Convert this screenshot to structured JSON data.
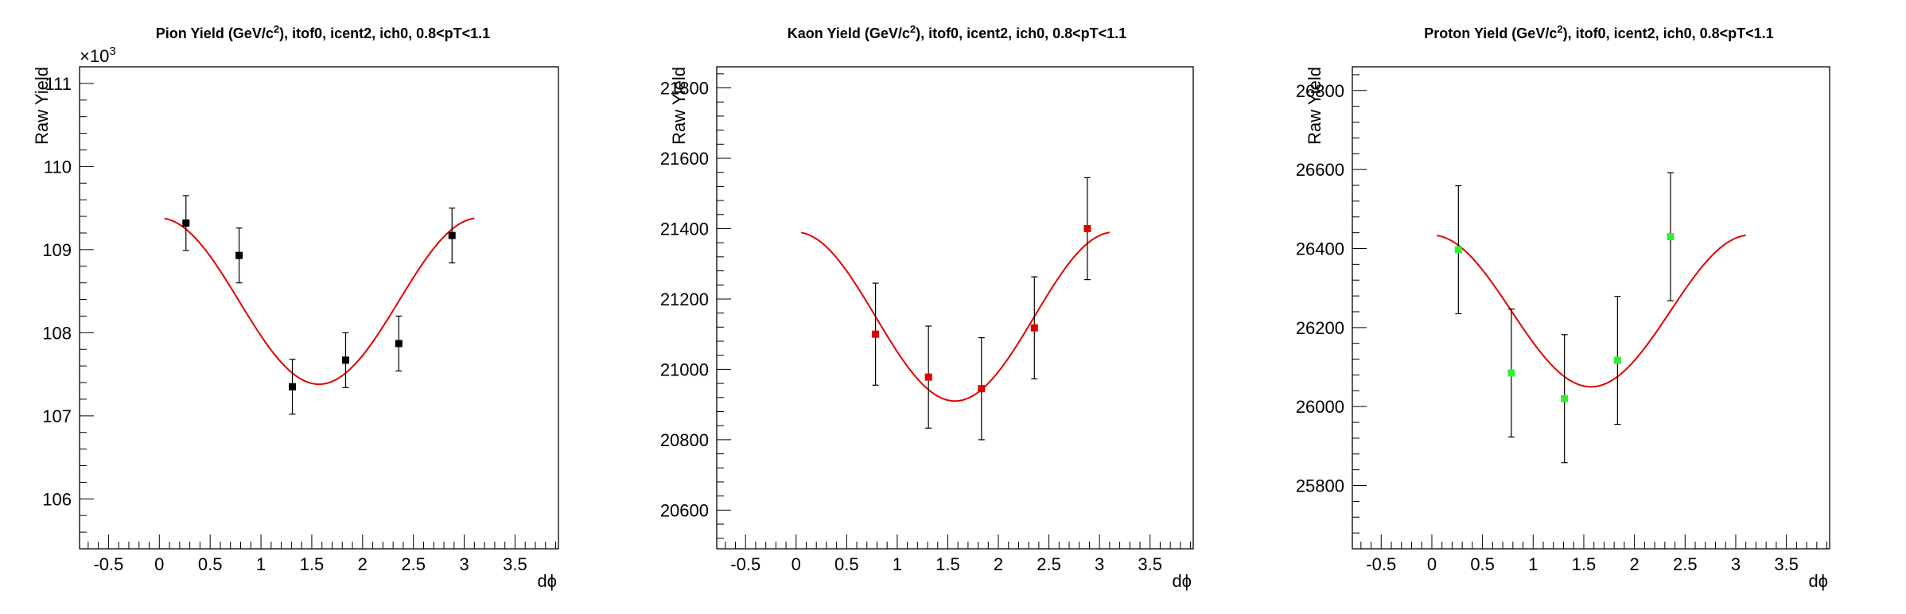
{
  "chart_data": [
    {
      "type": "scatter",
      "title": "Pion Yield (GeV/c), itof0, icent2, ich0, 0.8<pT<1.1",
      "title_sup": "2",
      "xlabel": "dϕ",
      "ylabel": "Raw Yield",
      "exponent_label": "×10",
      "exponent_sup": "3",
      "xlim": [
        -0.785,
        3.927
      ],
      "ylim": [
        105.4,
        111.2
      ],
      "xticks": [
        -0.5,
        0,
        0.5,
        1,
        1.5,
        2,
        2.5,
        3,
        3.5
      ],
      "xtick_labels": [
        "-0.5",
        "0",
        "0.5",
        "1",
        "1.5",
        "2",
        "2.5",
        "3",
        "3.5"
      ],
      "yticks": [
        106,
        107,
        108,
        109,
        110,
        111
      ],
      "ytick_labels": [
        "106",
        "107",
        "108",
        "109",
        "110",
        "111"
      ],
      "marker_color": "#000000",
      "fit_color": "#e00000",
      "fit": {
        "mean": 108.38,
        "amp": 1.0,
        "x_range": [
          0.05,
          3.1
        ]
      },
      "points": [
        {
          "x": 0.262,
          "y": 109.32,
          "err": 0.33
        },
        {
          "x": 0.785,
          "y": 108.93,
          "err": 0.33
        },
        {
          "x": 1.309,
          "y": 107.35,
          "err": 0.33
        },
        {
          "x": 1.833,
          "y": 107.67,
          "err": 0.33
        },
        {
          "x": 2.356,
          "y": 107.87,
          "err": 0.33
        },
        {
          "x": 2.88,
          "y": 109.17,
          "err": 0.33
        }
      ]
    },
    {
      "type": "scatter",
      "title": "Kaon Yield (GeV/c), itof0, icent2, ich0, 0.8<pT<1.1",
      "title_sup": "2",
      "xlabel": "dϕ",
      "ylabel": "Raw Yield",
      "xlim": [
        -0.785,
        3.927
      ],
      "ylim": [
        20490,
        21860
      ],
      "xticks": [
        -0.5,
        0,
        0.5,
        1,
        1.5,
        2,
        2.5,
        3,
        3.5
      ],
      "xtick_labels": [
        "-0.5",
        "0",
        "0.5",
        "1",
        "1.5",
        "2",
        "2.5",
        "3",
        "3.5"
      ],
      "yticks": [
        20600,
        20800,
        21000,
        21200,
        21400,
        21600,
        21800
      ],
      "ytick_labels": [
        "20600",
        "20800",
        "21000",
        "21200",
        "21400",
        "21600",
        "21800"
      ],
      "marker_color": "#e00000",
      "fit_color": "#e00000",
      "fit": {
        "mean": 21150,
        "amp": 240,
        "x_range": [
          0.05,
          3.1
        ]
      },
      "points": [
        {
          "x": 0.785,
          "y": 21100,
          "err": 145
        },
        {
          "x": 1.309,
          "y": 20978,
          "err": 145
        },
        {
          "x": 1.833,
          "y": 20945,
          "err": 145
        },
        {
          "x": 2.356,
          "y": 21118,
          "err": 145
        },
        {
          "x": 2.88,
          "y": 21400,
          "err": 145
        }
      ]
    },
    {
      "type": "scatter",
      "title": "Proton Yield (GeV/c), itof0, icent2, ich0, 0.8<pT<1.1",
      "title_sup": "2",
      "xlabel": "dϕ",
      "ylabel": "Raw Yield",
      "xlim": [
        -0.785,
        3.927
      ],
      "ylim": [
        25640,
        26860
      ],
      "xticks": [
        -0.5,
        0,
        0.5,
        1,
        1.5,
        2,
        2.5,
        3,
        3.5
      ],
      "xtick_labels": [
        "-0.5",
        "0",
        "0.5",
        "1",
        "1.5",
        "2",
        "2.5",
        "3",
        "3.5"
      ],
      "yticks": [
        25800,
        26000,
        26200,
        26400,
        26600,
        26800
      ],
      "ytick_labels": [
        "25800",
        "26000",
        "26200",
        "26400",
        "26600",
        "26800"
      ],
      "marker_color": "#33ee33",
      "fit_color": "#e00000",
      "fit": {
        "mean": 26242,
        "amp": 192,
        "x_range": [
          0.05,
          3.1
        ]
      },
      "points": [
        {
          "x": 0.262,
          "y": 26397,
          "err": 162
        },
        {
          "x": 0.785,
          "y": 26085,
          "err": 162
        },
        {
          "x": 1.309,
          "y": 26020,
          "err": 162
        },
        {
          "x": 1.833,
          "y": 26117,
          "err": 162
        },
        {
          "x": 2.356,
          "y": 26430,
          "err": 162
        }
      ]
    }
  ]
}
